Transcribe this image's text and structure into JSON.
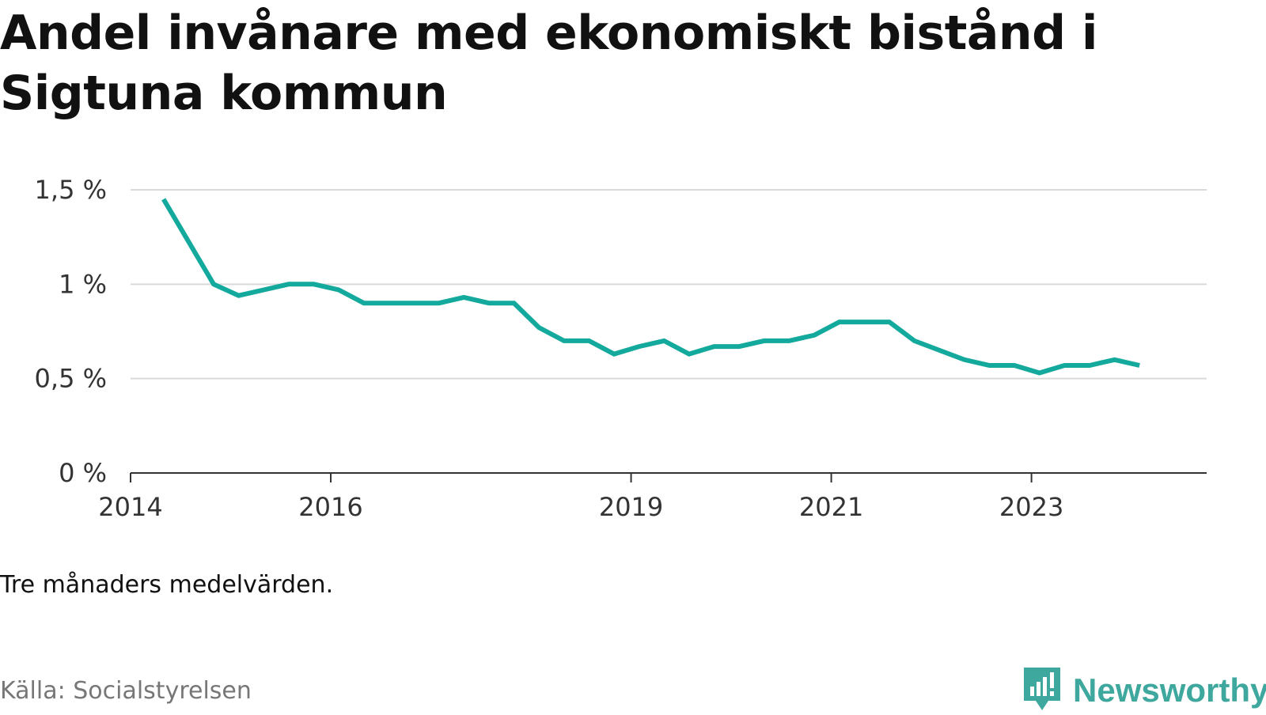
{
  "title": "Andel invånare med ekonomiskt bistånd i Sigtuna kommun",
  "note": "Tre månaders medelvärden.",
  "source": "Källa: Socialstyrelsen",
  "brand": {
    "name": "Newsworthy",
    "icon": "newsworthy-logo-icon",
    "color": "#3ea79e"
  },
  "colors": {
    "line": "#13a99c",
    "grid": "#d9d9d9",
    "axis": "#333333"
  },
  "chart_data": {
    "type": "line",
    "title": "Andel invånare med ekonomiskt bistånd i Sigtuna kommun",
    "xlabel": "",
    "ylabel": "",
    "ylim": [
      0,
      1.5
    ],
    "xlim": [
      2014.0,
      2024.75
    ],
    "grid": true,
    "y_ticks": [
      {
        "value": 0,
        "label": "0 %"
      },
      {
        "value": 0.5,
        "label": "0,5 %"
      },
      {
        "value": 1,
        "label": "1 %"
      },
      {
        "value": 1.5,
        "label": "1,5 %"
      }
    ],
    "x_ticks": [
      {
        "value": 2014,
        "label": "2014"
      },
      {
        "value": 2016,
        "label": "2016"
      },
      {
        "value": 2019,
        "label": "2019"
      },
      {
        "value": 2021,
        "label": "2021"
      },
      {
        "value": 2023,
        "label": "2023"
      }
    ],
    "series": [
      {
        "values": [
          {
            "x": 2014.33,
            "y": 1.45
          },
          {
            "x": 2014.83,
            "y": 1.0
          },
          {
            "x": 2015.08,
            "y": 0.94
          },
          {
            "x": 2015.33,
            "y": 0.97
          },
          {
            "x": 2015.58,
            "y": 1.0
          },
          {
            "x": 2015.83,
            "y": 1.0
          },
          {
            "x": 2016.08,
            "y": 0.97
          },
          {
            "x": 2016.33,
            "y": 0.9
          },
          {
            "x": 2016.58,
            "y": 0.9
          },
          {
            "x": 2016.83,
            "y": 0.9
          },
          {
            "x": 2017.08,
            "y": 0.9
          },
          {
            "x": 2017.33,
            "y": 0.93
          },
          {
            "x": 2017.58,
            "y": 0.9
          },
          {
            "x": 2017.83,
            "y": 0.9
          },
          {
            "x": 2018.08,
            "y": 0.77
          },
          {
            "x": 2018.33,
            "y": 0.7
          },
          {
            "x": 2018.58,
            "y": 0.7
          },
          {
            "x": 2018.83,
            "y": 0.63
          },
          {
            "x": 2019.08,
            "y": 0.67
          },
          {
            "x": 2019.33,
            "y": 0.7
          },
          {
            "x": 2019.58,
            "y": 0.63
          },
          {
            "x": 2019.83,
            "y": 0.67
          },
          {
            "x": 2020.08,
            "y": 0.67
          },
          {
            "x": 2020.33,
            "y": 0.7
          },
          {
            "x": 2020.58,
            "y": 0.7
          },
          {
            "x": 2020.83,
            "y": 0.73
          },
          {
            "x": 2021.08,
            "y": 0.8
          },
          {
            "x": 2021.33,
            "y": 0.8
          },
          {
            "x": 2021.58,
            "y": 0.8
          },
          {
            "x": 2021.83,
            "y": 0.7
          },
          {
            "x": 2022.33,
            "y": 0.6
          },
          {
            "x": 2022.58,
            "y": 0.57
          },
          {
            "x": 2022.83,
            "y": 0.57
          },
          {
            "x": 2023.08,
            "y": 0.53
          },
          {
            "x": 2023.33,
            "y": 0.57
          },
          {
            "x": 2023.58,
            "y": 0.57
          },
          {
            "x": 2023.83,
            "y": 0.6
          },
          {
            "x": 2024.08,
            "y": 0.57
          }
        ]
      }
    ]
  }
}
